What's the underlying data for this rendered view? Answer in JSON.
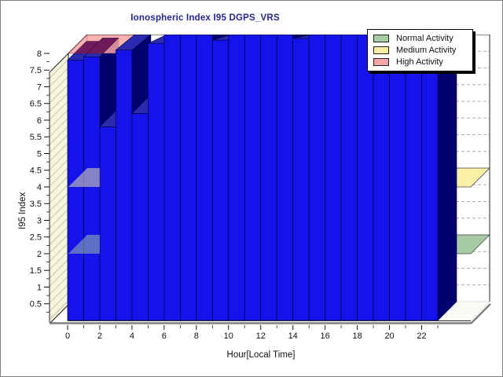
{
  "window": {
    "background": "#ffffff",
    "border_color": "#808080"
  },
  "title": {
    "text": "Ionospheric Index I95 DGPS_VRS",
    "color": "#26268F"
  },
  "legend": {
    "position": "top-right",
    "items": [
      {
        "label": "Normal Activity",
        "color": "#A7CBA2"
      },
      {
        "label": "Medium Activity",
        "color": "#F7F0A5"
      },
      {
        "label": "High Activity",
        "color": "#F4A6A9"
      }
    ]
  },
  "axes": {
    "x": {
      "label": "Hour[Local Time]",
      "tick_labels": [
        "0",
        "2",
        "4",
        "6",
        "8",
        "10",
        "12",
        "14",
        "16",
        "18",
        "20",
        "22"
      ],
      "minor_tick_every_hour": true
    },
    "y": {
      "label": "I95 Index",
      "min": 0,
      "max": 8,
      "tick_step": 0.5,
      "tick_labels": [
        "0.5",
        "1",
        "1.5",
        "2",
        "2.5",
        "3",
        "3.5",
        "4",
        "4.5",
        "5",
        "5.5",
        "6",
        "6.5",
        "7",
        "7.5",
        "8"
      ]
    }
  },
  "chart_data": {
    "type": "bar",
    "projection": "3d-oblique",
    "title": "Ionospheric Index I95 DGPS_VRS",
    "xlabel": "Hour[Local Time]",
    "ylabel": "I95 Index",
    "x": [
      0,
      1,
      2,
      3,
      4,
      5,
      6,
      7,
      8,
      9,
      10,
      11,
      12,
      13,
      14,
      15,
      16,
      17,
      18,
      19,
      20,
      21,
      22,
      23
    ],
    "values": [
      7.8,
      7.9,
      5.8,
      8.1,
      6.2,
      8.3,
      8.7,
      8.7,
      8.7,
      8.4,
      8.7,
      8.7,
      8.7,
      8.7,
      8.45,
      8.7,
      8.7,
      8.7,
      8.7,
      8.7,
      8.7,
      8.7,
      8.7,
      null
    ],
    "clip_note": "bars taller than 8.56 are clipped flat at the plot top; hour 23 has no bar",
    "ylim": [
      0,
      8
    ],
    "grid": "dashed horizontal lines on back wall",
    "legend_position": "top-right",
    "thresholds": [
      {
        "label": "Normal Activity",
        "value": 2,
        "color": "#A7CBA2"
      },
      {
        "label": "Medium Activity",
        "value": 4,
        "color": "#F7F0A5"
      },
      {
        "label": "High Activity",
        "value": 8,
        "color": "#F4A6A9"
      }
    ],
    "colors": {
      "bar_front": "#1414EA",
      "bar_side": "#000070",
      "bar_top": "#2B2BB2",
      "bar_outline": "#000040",
      "above_high_top": "#6E1A5C",
      "high_plane_fill": "rgba(246,163,163,0.85)",
      "wall": "#F8F5DC",
      "floor": "#FAFAF6",
      "gridline": "#ABABAB",
      "frame": "#111111",
      "axis_line": "#7F7F7F",
      "text": "#111111"
    }
  }
}
